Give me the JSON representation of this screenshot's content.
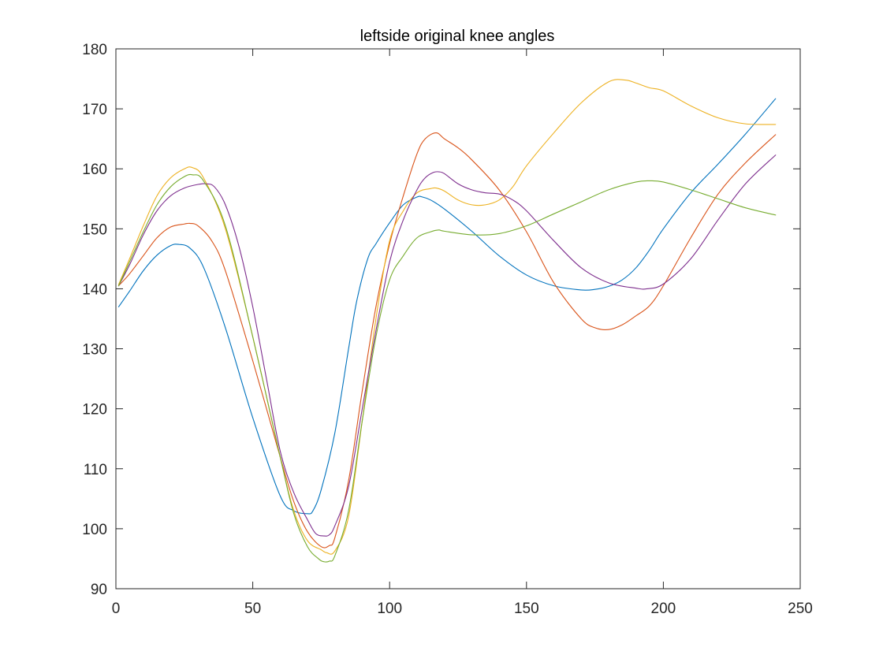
{
  "chart_data": {
    "type": "line",
    "title": "leftside original knee angles",
    "xlabel": "",
    "ylabel": "",
    "xlim": [
      0,
      250
    ],
    "ylim": [
      90,
      180
    ],
    "xticks": [
      0,
      50,
      100,
      150,
      200,
      250
    ],
    "yticks": [
      90,
      100,
      110,
      120,
      130,
      140,
      150,
      160,
      170,
      180
    ],
    "xtick_labels": [
      "0",
      "50",
      "100",
      "150",
      "200",
      "250"
    ],
    "ytick_labels": [
      "90",
      "100",
      "110",
      "120",
      "130",
      "140",
      "150",
      "160",
      "170",
      "180"
    ],
    "grid": false,
    "legend": "none",
    "series": [
      {
        "color": "#0072BD",
        "x": [
          1,
          5,
          10,
          15,
          20,
          23,
          27,
          32,
          40,
          50,
          60,
          65,
          70,
          72,
          75,
          80,
          85,
          88,
          92,
          95,
          100,
          105,
          110,
          112,
          115,
          120,
          130,
          140,
          150,
          160,
          170,
          175,
          180,
          185,
          190,
          195,
          200,
          210,
          220,
          230,
          241
        ],
        "y": [
          137,
          139.6,
          143,
          145.6,
          147.2,
          147.4,
          146.8,
          143.6,
          133.5,
          118.5,
          105.5,
          103,
          102.5,
          103,
          106.5,
          116,
          130,
          138,
          145,
          147.5,
          151,
          154,
          155.3,
          155.3,
          154.8,
          153.3,
          149.6,
          145.5,
          142.3,
          140.5,
          139.8,
          139.9,
          140.4,
          141.5,
          143.5,
          146.5,
          150,
          156,
          160.8,
          165.8,
          171.7
        ]
      },
      {
        "color": "#D95319",
        "x": [
          1,
          5,
          10,
          15,
          20,
          25,
          27,
          30,
          35,
          40,
          50,
          60,
          65,
          70,
          75,
          78,
          80,
          85,
          90,
          95,
          100,
          105,
          110,
          113,
          117,
          120,
          125,
          130,
          140,
          150,
          160,
          170,
          175,
          180,
          185,
          190,
          195,
          200,
          210,
          220,
          230,
          241
        ],
        "y": [
          140.5,
          142.5,
          145.5,
          148.5,
          150.3,
          150.8,
          150.9,
          150.5,
          148,
          143,
          128,
          112,
          104.5,
          99.5,
          97,
          97.2,
          98.5,
          108,
          123,
          137,
          147.5,
          155.5,
          162.5,
          165,
          166,
          165,
          163.5,
          161.5,
          156.5,
          149.5,
          141,
          135,
          133.5,
          133.2,
          134,
          135.5,
          137.2,
          140.5,
          148.5,
          155.8,
          161,
          165.7
        ]
      },
      {
        "color": "#EDB120",
        "x": [
          1,
          5,
          10,
          15,
          20,
          25,
          28,
          32,
          40,
          50,
          60,
          65,
          70,
          75,
          77,
          80,
          85,
          90,
          95,
          100,
          105,
          110,
          115,
          117,
          120,
          125,
          130,
          135,
          140,
          145,
          150,
          160,
          170,
          180,
          186,
          190,
          195,
          200,
          210,
          220,
          230,
          241
        ],
        "y": [
          140.7,
          145,
          150.5,
          155.5,
          158.5,
          160,
          160.2,
          158.5,
          150,
          132,
          112,
          103,
          98,
          96.5,
          96,
          96.3,
          102,
          118,
          135,
          148,
          153,
          156,
          156.7,
          156.8,
          156.3,
          154.8,
          154,
          154,
          154.8,
          157,
          160.5,
          166,
          171,
          174.5,
          174.8,
          174.3,
          173.5,
          173,
          170.5,
          168.5,
          167.5,
          167.4
        ]
      },
      {
        "color": "#7E2F8E",
        "x": [
          1,
          5,
          10,
          15,
          20,
          25,
          30,
          33,
          36,
          40,
          45,
          50,
          55,
          60,
          65,
          70,
          73,
          76,
          78,
          80,
          85,
          90,
          95,
          100,
          105,
          110,
          113,
          116,
          118,
          120,
          125,
          130,
          135,
          140,
          145,
          150,
          160,
          170,
          180,
          190,
          194,
          200,
          210,
          220,
          230,
          241
        ],
        "y": [
          140.5,
          144,
          149,
          153,
          155.5,
          156.8,
          157.4,
          157.5,
          157,
          154,
          147,
          137,
          125,
          113,
          106,
          101.5,
          99.2,
          98.8,
          99,
          100.5,
          107,
          120,
          133,
          144.5,
          151.5,
          156.5,
          158.5,
          159.4,
          159.5,
          159.2,
          157.5,
          156.5,
          156,
          155.8,
          154.8,
          153,
          148,
          143.5,
          141,
          140.1,
          140,
          140.8,
          145,
          151.5,
          157.5,
          162.3
        ]
      },
      {
        "color": "#77AC30",
        "x": [
          1,
          5,
          10,
          15,
          20,
          25,
          28,
          32,
          40,
          50,
          60,
          65,
          70,
          74,
          76,
          78,
          80,
          85,
          90,
          95,
          100,
          105,
          110,
          115,
          118,
          120,
          130,
          140,
          150,
          160,
          170,
          180,
          190,
          195,
          200,
          210,
          220,
          230,
          241
        ],
        "y": [
          140.5,
          144.5,
          149.5,
          154,
          157,
          158.7,
          159,
          158,
          150.5,
          132,
          112,
          102.5,
          97,
          95,
          94.5,
          94.6,
          95.5,
          103,
          118,
          132,
          141.5,
          145.5,
          148.5,
          149.5,
          149.8,
          149.6,
          149,
          149.2,
          150.5,
          152.5,
          154.5,
          156.5,
          157.8,
          158,
          157.8,
          156.5,
          155,
          153.5,
          152.3
        ]
      }
    ]
  }
}
